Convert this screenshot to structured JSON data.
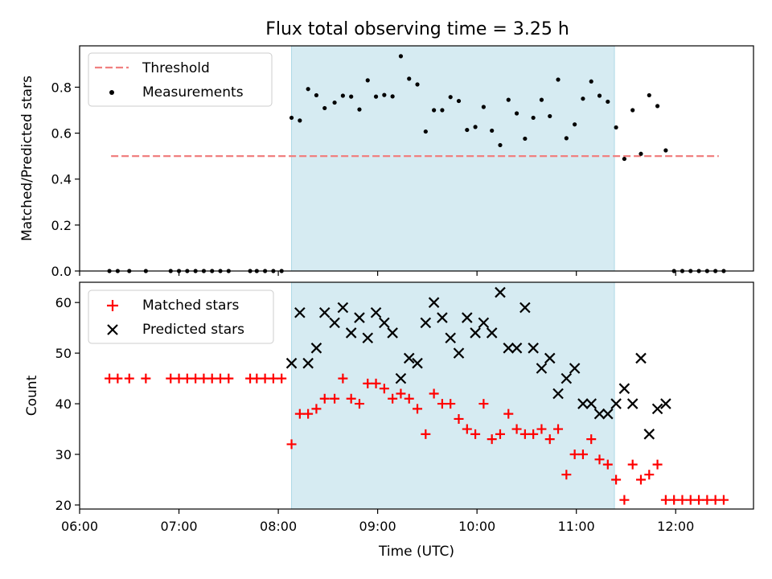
{
  "chart_data": [
    {
      "type": "scatter",
      "title": "Flux total observing time = 3.25 h",
      "xlabel": "",
      "ylabel": "Matched/Predicted stars",
      "ylim": [
        0,
        0.98
      ],
      "yticks": [
        "0.0",
        "0.2",
        "0.4",
        "0.6",
        "0.8"
      ],
      "ytick_values": [
        0.0,
        0.2,
        0.4,
        0.6,
        0.8
      ],
      "shaded_span": [
        "08:08",
        "11:23"
      ],
      "threshold": {
        "name": "Threshold",
        "y": 0.5,
        "x_range": [
          "06:19",
          "12:26"
        ],
        "color": "#f08080"
      },
      "legend_position": "upper-left",
      "series": [
        {
          "name": "Measurements",
          "color": "#000000",
          "points": [
            [
              "06:18",
              0
            ],
            [
              "06:23",
              0
            ],
            [
              "06:30",
              0
            ],
            [
              "06:40",
              0
            ],
            [
              "06:55",
              0
            ],
            [
              "07:00",
              0
            ],
            [
              "07:05",
              0
            ],
            [
              "07:10",
              0
            ],
            [
              "07:15",
              0
            ],
            [
              "07:20",
              0
            ],
            [
              "07:25",
              0
            ],
            [
              "07:30",
              0
            ],
            [
              "07:43",
              0
            ],
            [
              "07:47",
              0
            ],
            [
              "07:52",
              0
            ],
            [
              "07:57",
              0
            ],
            [
              "08:02",
              0
            ],
            [
              "08:08",
              0.667
            ],
            [
              "08:13",
              0.655
            ],
            [
              "08:18",
              0.792
            ],
            [
              "08:23",
              0.765
            ],
            [
              "08:28",
              0.709
            ],
            [
              "08:34",
              0.733
            ],
            [
              "08:39",
              0.763
            ],
            [
              "08:44",
              0.759
            ],
            [
              "08:49",
              0.703
            ],
            [
              "08:54",
              0.83
            ],
            [
              "08:59",
              0.759
            ],
            [
              "09:04",
              0.766
            ],
            [
              "09:09",
              0.76
            ],
            [
              "09:14",
              0.935
            ],
            [
              "09:19",
              0.837
            ],
            [
              "09:24",
              0.812
            ],
            [
              "09:29",
              0.607
            ],
            [
              "09:34",
              0.7
            ],
            [
              "09:39",
              0.7
            ],
            [
              "09:44",
              0.757
            ],
            [
              "09:49",
              0.74
            ],
            [
              "09:54",
              0.614
            ],
            [
              "09:59",
              0.627
            ],
            [
              "10:04",
              0.714
            ],
            [
              "10:09",
              0.611
            ],
            [
              "10:14",
              0.548
            ],
            [
              "10:19",
              0.745
            ],
            [
              "10:24",
              0.686
            ],
            [
              "10:29",
              0.576
            ],
            [
              "10:34",
              0.667
            ],
            [
              "10:39",
              0.745
            ],
            [
              "10:44",
              0.674
            ],
            [
              "10:49",
              0.833
            ],
            [
              "10:54",
              0.578
            ],
            [
              "10:59",
              0.638
            ],
            [
              "11:04",
              0.75
            ],
            [
              "11:09",
              0.825
            ],
            [
              "11:14",
              0.763
            ],
            [
              "11:19",
              0.737
            ],
            [
              "11:24",
              0.625
            ],
            [
              "11:29",
              0.488
            ],
            [
              "11:34",
              0.7
            ],
            [
              "11:39",
              0.51
            ],
            [
              "11:44",
              0.765
            ],
            [
              "11:49",
              0.718
            ],
            [
              "11:54",
              0.525
            ],
            [
              "11:59",
              0
            ],
            [
              "12:04",
              0
            ],
            [
              "12:09",
              0
            ],
            [
              "12:14",
              0
            ],
            [
              "12:19",
              0
            ],
            [
              "12:24",
              0
            ],
            [
              "12:29",
              0
            ]
          ]
        }
      ]
    },
    {
      "type": "scatter",
      "title": "",
      "xlabel": "Time (UTC)",
      "ylabel": "Count",
      "ylim": [
        19.2,
        64
      ],
      "yticks": [
        "20",
        "30",
        "40",
        "50",
        "60"
      ],
      "ytick_values": [
        20,
        30,
        40,
        50,
        60
      ],
      "xlim": [
        "06:00",
        "12:47"
      ],
      "xticks": [
        "06:00",
        "07:00",
        "08:00",
        "09:00",
        "10:00",
        "11:00",
        "12:00"
      ],
      "legend_position": "upper-left",
      "series": [
        {
          "name": "Matched stars",
          "color": "#ff0000",
          "marker": "plus",
          "points": [
            [
              "06:18",
              45
            ],
            [
              "06:23",
              45
            ],
            [
              "06:30",
              45
            ],
            [
              "06:40",
              45
            ],
            [
              "06:55",
              45
            ],
            [
              "07:00",
              45
            ],
            [
              "07:05",
              45
            ],
            [
              "07:10",
              45
            ],
            [
              "07:15",
              45
            ],
            [
              "07:20",
              45
            ],
            [
              "07:25",
              45
            ],
            [
              "07:30",
              45
            ],
            [
              "07:43",
              45
            ],
            [
              "07:47",
              45
            ],
            [
              "07:52",
              45
            ],
            [
              "07:57",
              45
            ],
            [
              "08:02",
              45
            ],
            [
              "08:08",
              32
            ],
            [
              "08:13",
              38
            ],
            [
              "08:18",
              38
            ],
            [
              "08:23",
              39
            ],
            [
              "08:28",
              41
            ],
            [
              "08:34",
              41
            ],
            [
              "08:39",
              45
            ],
            [
              "08:44",
              41
            ],
            [
              "08:49",
              40
            ],
            [
              "08:54",
              44
            ],
            [
              "08:59",
              44
            ],
            [
              "09:04",
              43
            ],
            [
              "09:09",
              41
            ],
            [
              "09:14",
              42
            ],
            [
              "09:19",
              41
            ],
            [
              "09:24",
              39
            ],
            [
              "09:29",
              34
            ],
            [
              "09:34",
              42
            ],
            [
              "09:39",
              40
            ],
            [
              "09:44",
              40
            ],
            [
              "09:49",
              37
            ],
            [
              "09:54",
              35
            ],
            [
              "09:59",
              34
            ],
            [
              "10:04",
              40
            ],
            [
              "10:09",
              33
            ],
            [
              "10:14",
              34
            ],
            [
              "10:19",
              38
            ],
            [
              "10:24",
              35
            ],
            [
              "10:29",
              34
            ],
            [
              "10:34",
              34
            ],
            [
              "10:39",
              35
            ],
            [
              "10:44",
              33
            ],
            [
              "10:49",
              35
            ],
            [
              "10:54",
              26
            ],
            [
              "10:59",
              30
            ],
            [
              "11:04",
              30
            ],
            [
              "11:09",
              33
            ],
            [
              "11:14",
              29
            ],
            [
              "11:19",
              28
            ],
            [
              "11:24",
              25
            ],
            [
              "11:29",
              21
            ],
            [
              "11:34",
              28
            ],
            [
              "11:39",
              25
            ],
            [
              "11:44",
              26
            ],
            [
              "11:49",
              28
            ],
            [
              "11:54",
              21
            ],
            [
              "11:59",
              21
            ],
            [
              "12:04",
              21
            ],
            [
              "12:09",
              21
            ],
            [
              "12:14",
              21
            ],
            [
              "12:19",
              21
            ],
            [
              "12:24",
              21
            ],
            [
              "12:29",
              21
            ]
          ]
        },
        {
          "name": "Predicted stars",
          "color": "#000000",
          "marker": "x",
          "points": [
            [
              "08:08",
              48
            ],
            [
              "08:13",
              58
            ],
            [
              "08:18",
              48
            ],
            [
              "08:23",
              51
            ],
            [
              "08:28",
              58
            ],
            [
              "08:34",
              56
            ],
            [
              "08:39",
              59
            ],
            [
              "08:44",
              54
            ],
            [
              "08:49",
              57
            ],
            [
              "08:54",
              53
            ],
            [
              "08:59",
              58
            ],
            [
              "09:04",
              56
            ],
            [
              "09:09",
              54
            ],
            [
              "09:14",
              45
            ],
            [
              "09:19",
              49
            ],
            [
              "09:24",
              48
            ],
            [
              "09:29",
              56
            ],
            [
              "09:34",
              60
            ],
            [
              "09:39",
              57
            ],
            [
              "09:44",
              53
            ],
            [
              "09:49",
              50
            ],
            [
              "09:54",
              57
            ],
            [
              "09:59",
              54
            ],
            [
              "10:04",
              56
            ],
            [
              "10:09",
              54
            ],
            [
              "10:14",
              62
            ],
            [
              "10:19",
              51
            ],
            [
              "10:24",
              51
            ],
            [
              "10:29",
              59
            ],
            [
              "10:34",
              51
            ],
            [
              "10:39",
              47
            ],
            [
              "10:44",
              49
            ],
            [
              "10:49",
              42
            ],
            [
              "10:54",
              45
            ],
            [
              "10:59",
              47
            ],
            [
              "11:04",
              40
            ],
            [
              "11:09",
              40
            ],
            [
              "11:14",
              38
            ],
            [
              "11:19",
              38
            ],
            [
              "11:24",
              40
            ],
            [
              "11:29",
              43
            ],
            [
              "11:34",
              40
            ],
            [
              "11:39",
              49
            ],
            [
              "11:44",
              34
            ],
            [
              "11:49",
              39
            ],
            [
              "11:54",
              40
            ]
          ]
        }
      ]
    }
  ]
}
